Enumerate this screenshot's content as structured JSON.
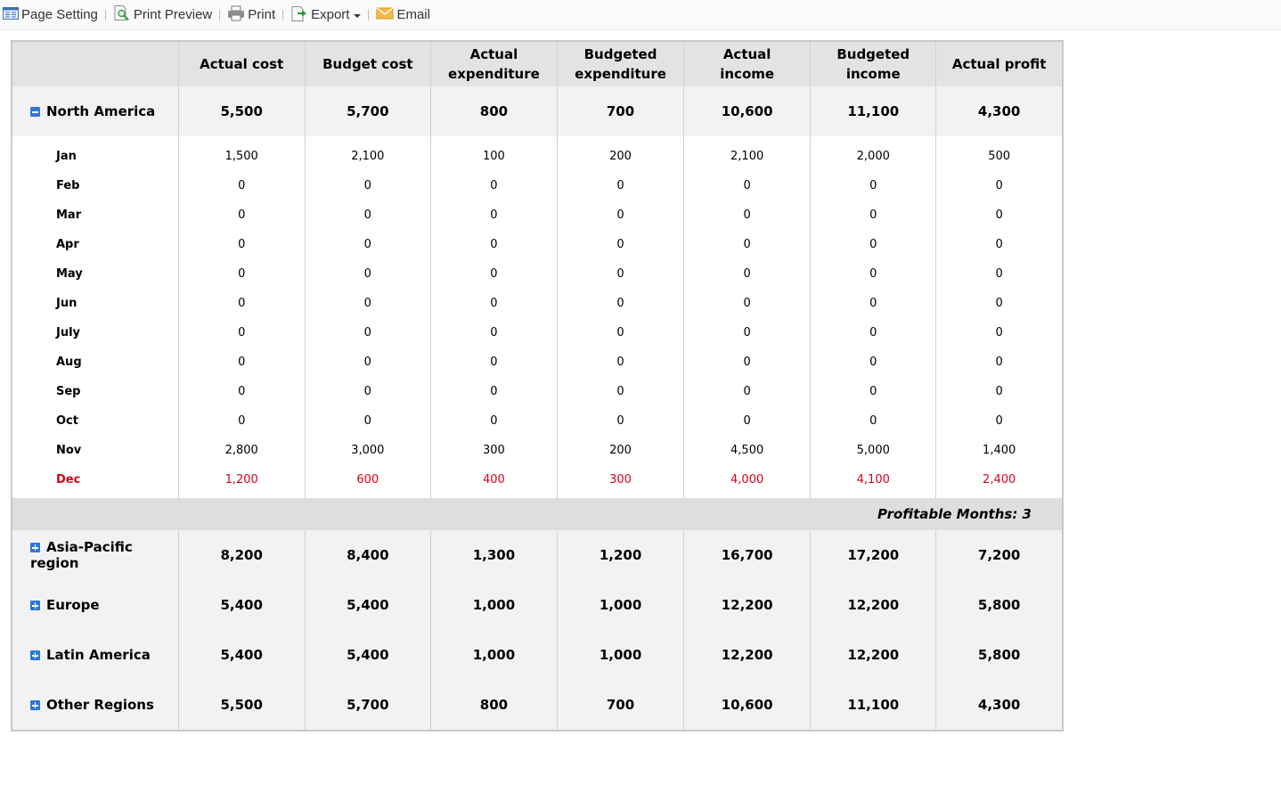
{
  "toolbar": {
    "page_setting": "Page Setting",
    "print_preview": "Print Preview",
    "print": "Print",
    "export": "Export",
    "email": "Email"
  },
  "columns": [
    "",
    "Actual cost",
    "Budget cost",
    "Actual expenditure",
    "Budgeted expenditure",
    "Actual income",
    "Budgeted income",
    "Actual profit"
  ],
  "header_lines": [
    [
      ""
    ],
    [
      "Actual cost"
    ],
    [
      "Budget cost"
    ],
    [
      "Actual",
      "expenditure"
    ],
    [
      "Budgeted",
      "expenditure"
    ],
    [
      "Actual",
      "income"
    ],
    [
      "Budgeted",
      "income"
    ],
    [
      "Actual profit"
    ]
  ],
  "expanded_group": {
    "name": "North America",
    "totals": [
      "5,500",
      "5,700",
      "800",
      "700",
      "10,600",
      "11,100",
      "4,300"
    ],
    "months": [
      {
        "name": "Jan",
        "values": [
          "1,500",
          "2,100",
          "100",
          "200",
          "2,100",
          "2,000",
          "500"
        ]
      },
      {
        "name": "Feb",
        "values": [
          "0",
          "0",
          "0",
          "0",
          "0",
          "0",
          "0"
        ]
      },
      {
        "name": "Mar",
        "values": [
          "0",
          "0",
          "0",
          "0",
          "0",
          "0",
          "0"
        ]
      },
      {
        "name": "Apr",
        "values": [
          "0",
          "0",
          "0",
          "0",
          "0",
          "0",
          "0"
        ]
      },
      {
        "name": "May",
        "values": [
          "0",
          "0",
          "0",
          "0",
          "0",
          "0",
          "0"
        ]
      },
      {
        "name": "Jun",
        "values": [
          "0",
          "0",
          "0",
          "0",
          "0",
          "0",
          "0"
        ]
      },
      {
        "name": "July",
        "values": [
          "0",
          "0",
          "0",
          "0",
          "0",
          "0",
          "0"
        ]
      },
      {
        "name": "Aug",
        "values": [
          "0",
          "0",
          "0",
          "0",
          "0",
          "0",
          "0"
        ]
      },
      {
        "name": "Sep",
        "values": [
          "0",
          "0",
          "0",
          "0",
          "0",
          "0",
          "0"
        ]
      },
      {
        "name": "Oct",
        "values": [
          "0",
          "0",
          "0",
          "0",
          "0",
          "0",
          "0"
        ]
      },
      {
        "name": "Nov",
        "values": [
          "2,800",
          "3,000",
          "300",
          "200",
          "4,500",
          "5,000",
          "1,400"
        ]
      },
      {
        "name": "Dec",
        "values": [
          "1,200",
          "600",
          "400",
          "300",
          "4,000",
          "4,100",
          "2,400"
        ],
        "highlight": true
      }
    ],
    "summary": "Profitable Months: 3"
  },
  "collapsed_groups": [
    {
      "name": "Asia-Pacific region",
      "totals": [
        "8,200",
        "8,400",
        "1,300",
        "1,200",
        "16,700",
        "17,200",
        "7,200"
      ]
    },
    {
      "name": "Europe",
      "totals": [
        "5,400",
        "5,400",
        "1,000",
        "1,000",
        "12,200",
        "12,200",
        "5,800"
      ]
    },
    {
      "name": "Latin America",
      "totals": [
        "5,400",
        "5,400",
        "1,000",
        "1,000",
        "12,200",
        "12,200",
        "5,800"
      ]
    },
    {
      "name": "Other Regions",
      "totals": [
        "5,500",
        "5,700",
        "800",
        "700",
        "10,600",
        "11,100",
        "4,300"
      ]
    }
  ],
  "colors": {
    "highlight_text": "#d9001b",
    "toggle_blue": "#2f78d1",
    "header_bg": "#e3e3e5",
    "group_bg": "#f2f2f4"
  }
}
